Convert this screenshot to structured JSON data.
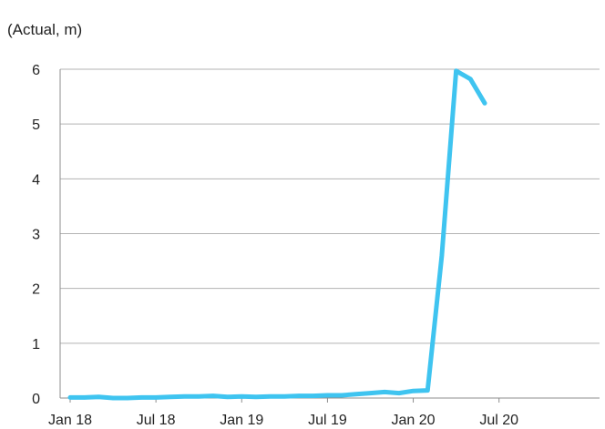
{
  "chart_data": {
    "type": "line",
    "title": "",
    "unit_label": "(Actual, m)",
    "xlabel": "",
    "ylabel": "",
    "ylim": [
      0,
      6
    ],
    "y_ticks": [
      "0",
      "1",
      "2",
      "3",
      "4",
      "5",
      "6"
    ],
    "x_ticks": [
      "Jan 18",
      "Jul 18",
      "Jan 19",
      "Jul 19",
      "Jan 20",
      "Jul 20"
    ],
    "grid": "horizontal",
    "colors": {
      "series": "#3fc4f0",
      "grid": "#b3b3b3",
      "axis": "#8c8c8c",
      "text": "#222222"
    },
    "series": [
      {
        "name": "",
        "x": [
          "2018-01",
          "2018-02",
          "2018-03",
          "2018-04",
          "2018-05",
          "2018-06",
          "2018-07",
          "2018-08",
          "2018-09",
          "2018-10",
          "2018-11",
          "2018-12",
          "2019-01",
          "2019-02",
          "2019-03",
          "2019-04",
          "2019-05",
          "2019-06",
          "2019-07",
          "2019-08",
          "2019-09",
          "2019-10",
          "2019-11",
          "2019-12",
          "2020-01",
          "2020-02",
          "2020-03",
          "2020-04",
          "2020-05",
          "2020-06"
        ],
        "values": [
          0.01,
          0.01,
          0.02,
          0.0,
          0.0,
          0.01,
          0.01,
          0.02,
          0.03,
          0.03,
          0.04,
          0.02,
          0.03,
          0.02,
          0.03,
          0.03,
          0.04,
          0.04,
          0.05,
          0.05,
          0.07,
          0.09,
          0.11,
          0.09,
          0.13,
          0.14,
          2.6,
          5.97,
          5.82,
          5.38
        ]
      }
    ]
  }
}
